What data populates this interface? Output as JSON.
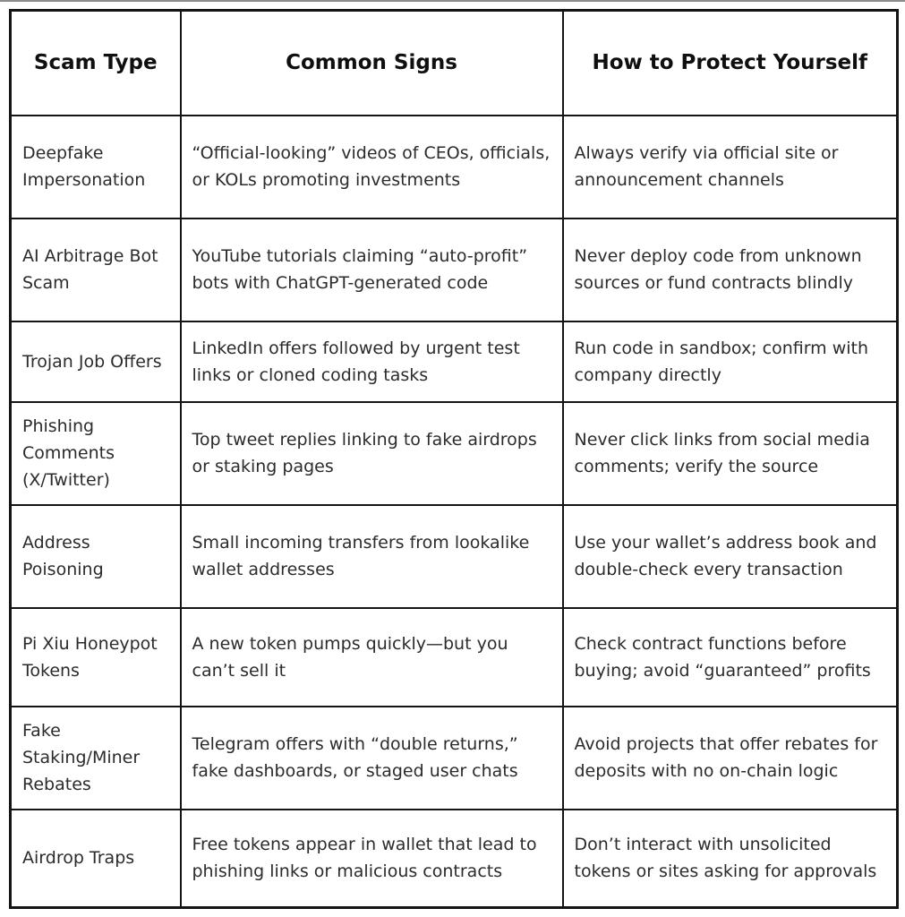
{
  "table": {
    "headers": {
      "scam_type": "Scam Type",
      "common_signs": "Common Signs",
      "protection": "How to Protect Yourself"
    },
    "rows": [
      {
        "scam_type": "Deepfake Impersonation",
        "common_signs": "“Official-looking” videos of CEOs, officials, or KOLs promoting investments",
        "protection": "Always verify via official site or announcement channels"
      },
      {
        "scam_type": "AI Arbitrage Bot Scam",
        "common_signs": "YouTube tutorials claiming “auto-profit” bots with ChatGPT-generated code",
        "protection": "Never deploy code from unknown sources or fund contracts blindly"
      },
      {
        "scam_type": "Trojan Job Offers",
        "common_signs": "LinkedIn offers followed by urgent test links or cloned coding tasks",
        "protection": "Run code in sandbox; confirm with company directly"
      },
      {
        "scam_type": "Phishing Comments (X/Twitter)",
        "common_signs": "Top tweet replies linking to fake airdrops or staking pages",
        "protection": "Never click links from social media comments; verify the source"
      },
      {
        "scam_type": "Address Poisoning",
        "common_signs": "Small incoming transfers from lookalike wallet addresses",
        "protection": "Use your wallet’s address book and double-check every transaction"
      },
      {
        "scam_type": "Pi Xiu Honeypot Tokens",
        "common_signs": "A new token pumps quickly—but you can’t sell it",
        "protection": "Check contract functions before buying; avoid “guaranteed” profits"
      },
      {
        "scam_type": "Fake Staking/Miner Rebates",
        "common_signs": "Telegram offers with “double returns,” fake dashboards, or staged user chats",
        "protection": "Avoid projects that offer rebates for deposits with no on-chain logic"
      },
      {
        "scam_type": "Airdrop Traps",
        "common_signs": "Free tokens appear in wallet that lead to phishing links or malicious contracts",
        "protection": "Don’t interact with unsolicited tokens or sites asking for approvals"
      }
    ]
  },
  "colors": {
    "border": "#141414",
    "header_text": "#0f0f0f",
    "body_text": "#2b2b2b",
    "background": "#ffffff"
  }
}
